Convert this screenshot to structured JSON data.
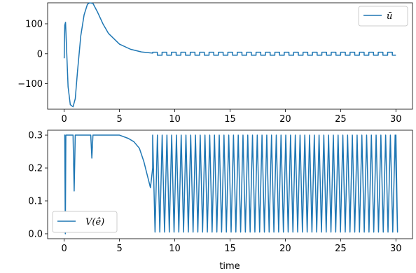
{
  "colors": {
    "series": "#1f77b4"
  },
  "chart_data": [
    {
      "type": "line",
      "xlabel": "",
      "ylabel": "",
      "xlim": [
        -1.5,
        31.5
      ],
      "ylim": [
        -185,
        170
      ],
      "xticks": [
        0,
        5,
        10,
        15,
        20,
        25,
        30
      ],
      "xtick_labels": [
        "0",
        "5",
        "10",
        "15",
        "20",
        "25",
        "30"
      ],
      "yticks": [
        -100,
        0,
        100
      ],
      "ytick_labels": [
        "−100",
        "0",
        "100"
      ],
      "legend_position": "top-right",
      "series": [
        {
          "name": "ū",
          "description": "spike to ~105 near t=0.1, dip to ~-177 around t=0.6-1.0, rise to ~170 at t=2.3-2.6, exponential decay to ~0 by t=8, then square wave of amplitude ~5 with period ~0.85 from t=8 to t=30",
          "x": [
            0.0,
            0.05,
            0.12,
            0.2,
            0.35,
            0.55,
            0.8,
            1.0,
            1.2,
            1.5,
            1.8,
            2.1,
            2.3,
            2.6,
            3.0,
            3.5,
            4.0,
            5.0,
            6.0,
            7.0,
            8.0
          ],
          "y": [
            -15,
            95,
            105,
            30,
            -110,
            -170,
            -177,
            -150,
            -60,
            60,
            130,
            165,
            170,
            168,
            140,
            100,
            68,
            32,
            15,
            6,
            2
          ],
          "square_wave": {
            "t_start": 8.0,
            "t_end": 30.0,
            "period": 0.85,
            "high": 5,
            "low": -5
          }
        }
      ]
    },
    {
      "type": "line",
      "xlabel": "time",
      "ylabel": "",
      "xlim": [
        -1.5,
        31.5
      ],
      "ylim": [
        -0.015,
        0.315
      ],
      "xticks": [
        0,
        5,
        10,
        15,
        20,
        25,
        30
      ],
      "xtick_labels": [
        "0",
        "5",
        "10",
        "15",
        "20",
        "25",
        "30"
      ],
      "yticks": [
        0.0,
        0.1,
        0.2,
        0.3
      ],
      "ytick_labels": [
        "0.0",
        "0.1",
        "0.2",
        "0.3"
      ],
      "legend_position": "bottom-left",
      "series": [
        {
          "name": "V(ê)",
          "description": "near 0.3 with sharp dips at t~0.1 (0.0), t~0.9 (0.13), t~2.5 (0.23), gradual sag to ~0.14 at t~7.8, then oscillation between ~0.0 and 0.3 with period ~0.43 from t=8 to t=30",
          "x": [
            0.0,
            0.05,
            0.1,
            0.15,
            0.3,
            0.8,
            0.9,
            1.0,
            1.5,
            2.4,
            2.5,
            2.6,
            3.5,
            5.0,
            5.8,
            6.3,
            6.8,
            7.2,
            7.5,
            7.8,
            8.0
          ],
          "y": [
            0.3,
            0.3,
            0.0,
            0.3,
            0.3,
            0.3,
            0.13,
            0.3,
            0.3,
            0.3,
            0.23,
            0.3,
            0.3,
            0.3,
            0.29,
            0.28,
            0.26,
            0.22,
            0.18,
            0.14,
            0.2
          ],
          "oscillation": {
            "t_start": 8.0,
            "t_end": 30.0,
            "period": 0.43,
            "high": 0.3,
            "low": 0.005
          }
        }
      ]
    }
  ]
}
